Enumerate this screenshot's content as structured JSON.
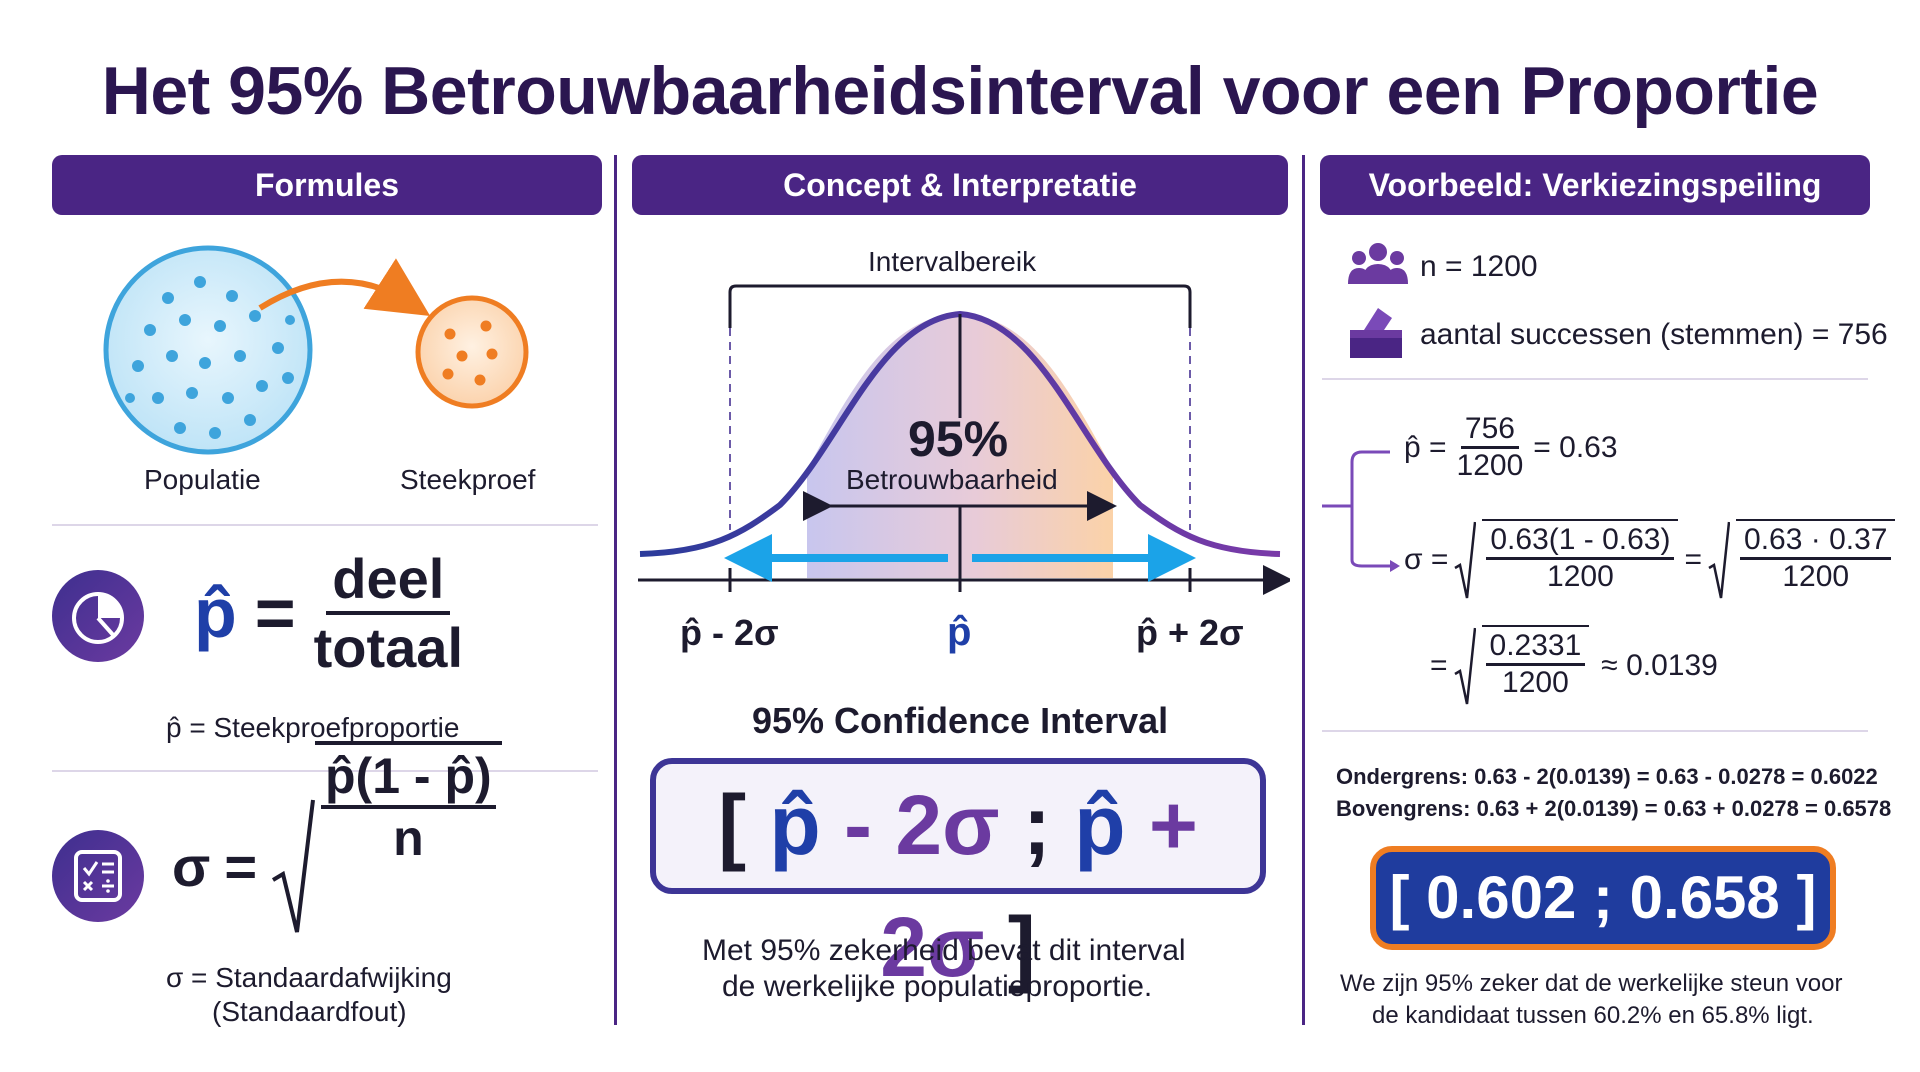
{
  "title": "Het 95% Betrouwbaarheidsinterval voor een Proportie",
  "columns": {
    "formulas": "Formules",
    "concept": "Concept & Interpretatie",
    "example": "Voorbeeld: Verkiezingspeiling"
  },
  "formulas": {
    "population_label": "Populatie",
    "sample_label": "Steekproef",
    "phat_symbol": "p̂",
    "equals": "=",
    "phat_numerator": "deel",
    "phat_denominator": "totaal",
    "phat_caption": "p̂ = Steekproefproportie",
    "sigma_symbol": "σ",
    "sigma_radicand_num": "p̂(1 - p̂)",
    "sigma_radicand_den": "n",
    "sigma_caption_1": "σ = Standaardafwijking",
    "sigma_caption_2": "(Standaardfout)"
  },
  "concept": {
    "range_label": "Intervalbereik",
    "pct": "95%",
    "confidence_word": "Betrouwbaarheid",
    "left_tick": "p̂ - 2σ",
    "center_tick": "p̂",
    "right_tick": "p̂ + 2σ",
    "ci_heading": "95% Confidence Interval",
    "ci_open": "[",
    "ci_phat1": "p̂",
    "ci_minus": " - 2σ",
    "ci_sep": " ; ",
    "ci_phat2": "p̂",
    "ci_plus": " + 2σ ",
    "ci_close": "]",
    "interpretation_1": "Met 95% zekerheid bevat dit interval",
    "interpretation_2": "de werkelijke populatieproportie."
  },
  "example": {
    "n_text": "n = 1200",
    "successes_text": "aantal successen (stemmen) = 756",
    "phat_lhs": "p̂ =",
    "phat_num": "756",
    "phat_den": "1200",
    "phat_result": "= 0.63",
    "sigma_lhs": "σ =",
    "sigma_num1": "0.63(1 - 0.63)",
    "sigma_den1": "1200",
    "sigma_eq": "=",
    "sigma_num2": "0.63 · 0.37",
    "sigma_den2": "1200",
    "sigma_eq2": "=",
    "sigma_num3": "0.2331",
    "sigma_den3": "1200",
    "sigma_result": "≈ 0.0139",
    "lower_bound": "Ondergrens: 0.63 - 2(0.0139) = 0.63 - 0.0278 = 0.6022",
    "upper_bound": "Bovengrens: 0.63 + 2(0.0139) = 0.63 + 0.0278 = 0.6578",
    "result": "[ 0.602 ; 0.658 ]",
    "conclusion_1": "We zijn 95% zeker dat de werkelijke steun voor",
    "conclusion_2": "de kandidaat tussen 60.2% en 65.8% ligt."
  },
  "colors": {
    "banner": "#4a2584",
    "title": "#2b1650",
    "phat_blue": "#1f3fa8",
    "sigma_purple": "#6b3aa0",
    "population_blue": "#3ea4dc",
    "sample_orange": "#ef7d22",
    "arrow_blue": "#1ba3e8"
  },
  "icons": [
    "pie-chart-icon",
    "calculator-icon",
    "people-icon",
    "ballot-box-icon"
  ]
}
